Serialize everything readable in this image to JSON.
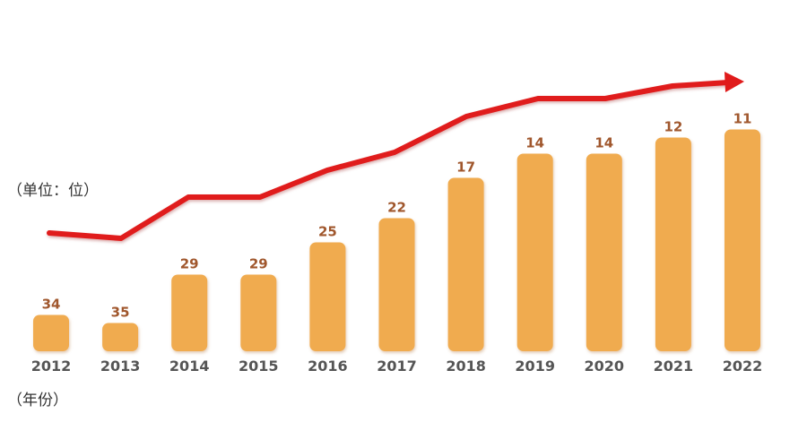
{
  "chart_data": {
    "type": "bar",
    "categories": [
      "2012",
      "2013",
      "2014",
      "2015",
      "2016",
      "2017",
      "2018",
      "2019",
      "2020",
      "2021",
      "2022"
    ],
    "values": [
      34,
      35,
      29,
      29,
      25,
      22,
      17,
      14,
      14,
      12,
      11
    ],
    "ylabel": "（单位：位）",
    "xlabel": "（年份）",
    "y_axis_inverted": true,
    "trend_arrow": "upward red arrow following bars",
    "grid": false,
    "colors": {
      "bar": "#f0ab4f",
      "value_label": "#a0572d",
      "year_label": "#555555",
      "trend": "#e01b1b"
    }
  }
}
